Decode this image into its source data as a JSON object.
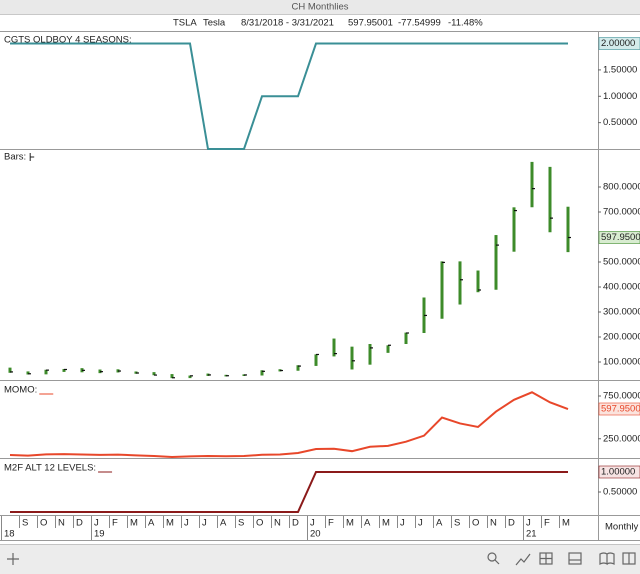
{
  "window_title": "CH Monthlies",
  "header": {
    "ticker": "TSLA",
    "name": "Tesla",
    "range": "8/31/2018 - 3/31/2021",
    "last": 597.95001,
    "change": -77.54999,
    "change_pct": "-11.48%"
  },
  "interval": "Monthly",
  "chart_data": [
    {
      "type": "line",
      "title": "CGTS OLDBOY 4 SEASONS:",
      "color": "#3a8f96",
      "values": [
        2,
        2,
        2,
        2,
        2,
        2,
        2,
        2,
        2,
        2,
        2,
        0,
        0,
        0,
        1,
        1,
        1,
        2,
        2,
        2,
        2,
        2,
        2,
        2,
        2,
        2,
        2,
        2,
        2,
        2,
        2,
        2
      ],
      "ylim": [
        0,
        2.2
      ],
      "yticks": [
        {
          "value": 0.5,
          "label": "0.50000"
        },
        {
          "value": 1,
          "label": "1.00000"
        },
        {
          "value": 1.5,
          "label": "1.50000"
        }
      ],
      "last_value": {
        "value": 2,
        "label": "2.00000"
      },
      "box_color": "#d3ebeb"
    },
    {
      "type": "ohlc",
      "title": "Bars:",
      "color": "#3d8b2a",
      "high": [
        77.5,
        62.3,
        69.0,
        72.1,
        75.4,
        69.9,
        70.8,
        62.1,
        59.5,
        51.7,
        45.9,
        53.8,
        48.8,
        50.6,
        67.0,
        71.1,
        87.1,
        130.6,
        193.8,
        161.4,
        172.0,
        166.7,
        217.6,
        358.0,
        502.5,
        502.5,
        465.9,
        607.8,
        718.7,
        900.4,
        880.5,
        721.1
      ],
      "low": [
        56.8,
        50.0,
        50.6,
        60.3,
        58.8,
        55.4,
        58.1,
        52.9,
        47.1,
        35.4,
        35.6,
        44.2,
        42.2,
        44.0,
        46.0,
        62.2,
        65.0,
        84.3,
        122.3,
        70.1,
        89.3,
        136.6,
        172.0,
        216.0,
        273.0,
        329.9,
        379.1,
        389.0,
        541.2,
        719.0,
        619.0,
        539.5
      ],
      "close": [
        60.3,
        52.9,
        67.5,
        70.1,
        66.6,
        61.4,
        63.9,
        56.0,
        47.7,
        37.0,
        44.7,
        48.3,
        45.1,
        48.2,
        62.7,
        65.9,
        83.7,
        130.1,
        133.6,
        104.8,
        156.4,
        167.0,
        216.0,
        286.2,
        498.3,
        429.0,
        388.0,
        567.6,
        705.7,
        793.5,
        675.5,
        597.95001
      ],
      "ylim": [
        28,
        948
      ],
      "yticks": [
        {
          "value": 100,
          "label": "100.000000"
        },
        {
          "value": 200,
          "label": "200.000000"
        },
        {
          "value": 300,
          "label": "300.000000"
        },
        {
          "value": 400,
          "label": "400.000000"
        },
        {
          "value": 500,
          "label": "500.000000"
        },
        {
          "value": 700,
          "label": "700.000000"
        },
        {
          "value": 800,
          "label": "800.000000"
        }
      ],
      "last_value": 597.95001,
      "box_color": "#d8ecd0"
    },
    {
      "type": "line",
      "title": "MOMO:",
      "color": "#e8472a",
      "values": [
        60.3,
        52.9,
        67.5,
        70.1,
        66.6,
        61.4,
        63.9,
        56.0,
        47.7,
        37.0,
        44.7,
        48.3,
        45.1,
        48.2,
        62.7,
        65.9,
        83.7,
        130.1,
        133.6,
        104.8,
        156.4,
        167.0,
        216.0,
        286.2,
        498.3,
        429.0,
        388.0,
        567.6,
        705.7,
        793.5,
        675.5,
        597.95001
      ],
      "ylim": [
        25,
        902
      ],
      "yticks": [
        {
          "value": 250,
          "label": "250.000000"
        },
        {
          "value": 750,
          "label": "750.000000"
        }
      ],
      "last_value": 597.95001,
      "box_color": "#fbe3dd"
    },
    {
      "type": "line",
      "title": "M2F ALT 12 LEVELS:",
      "color": "#8b1a1a",
      "values": [
        0,
        0,
        0,
        0,
        0,
        0,
        0,
        0,
        0,
        0,
        0,
        0,
        0,
        0,
        0,
        0,
        0,
        1,
        1,
        1,
        1,
        1,
        1,
        1,
        1,
        1,
        1,
        1,
        1,
        1,
        1,
        1
      ],
      "ylim": [
        -0.075,
        1.275
      ],
      "yticks": [
        {
          "value": 0.5,
          "label": "0.50000"
        }
      ],
      "last_value": {
        "value": 1,
        "label": "1.00000"
      },
      "box_color": "#f7e3e3",
      "categories": [
        null,
        "S",
        "O",
        "N",
        "D",
        "J",
        "F",
        "M",
        "A",
        "M",
        "J",
        "J",
        "A",
        "S",
        "O",
        "N",
        "D",
        "J",
        "F",
        "M",
        "A",
        "M",
        "J",
        "J",
        "A",
        "S",
        "O",
        "N",
        "D",
        "J",
        "F",
        "M"
      ],
      "years": [
        "18",
        null,
        null,
        null,
        null,
        "19",
        null,
        null,
        null,
        null,
        null,
        null,
        null,
        null,
        null,
        null,
        null,
        "20",
        null,
        null,
        null,
        null,
        null,
        null,
        null,
        null,
        null,
        null,
        null,
        "21",
        null,
        null
      ]
    }
  ]
}
